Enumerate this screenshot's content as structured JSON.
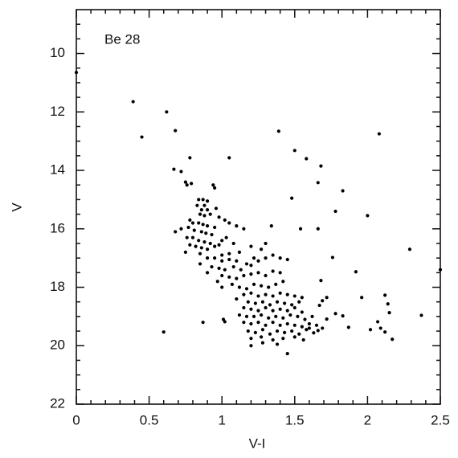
{
  "chart_data": {
    "type": "scatter",
    "annotation": "Be 28",
    "xlabel": "V-I",
    "ylabel": "V",
    "color": "#000000",
    "xlim": [
      0,
      2.5
    ],
    "ylim": [
      22,
      8.5
    ],
    "xticks": [
      0,
      0.5,
      1,
      1.5,
      2,
      2.5
    ],
    "yticks": [
      10,
      12,
      14,
      16,
      18,
      20,
      22
    ],
    "xminorticks": [
      0.1,
      0.2,
      0.3,
      0.4,
      0.6,
      0.7,
      0.8,
      0.9,
      1.1,
      1.2,
      1.3,
      1.4,
      1.6,
      1.7,
      1.8,
      1.9,
      2.1,
      2.2,
      2.3,
      2.4
    ],
    "yminorticks": [
      9,
      9.5,
      10.5,
      11,
      11.5,
      12.5,
      13,
      13.5,
      14.5,
      15,
      15.5,
      16.5,
      17,
      17.5,
      18.5,
      19,
      19.5,
      20.5,
      21,
      21.5
    ],
    "x": [
      0.0,
      0.39,
      0.45,
      0.62,
      0.68,
      0.78,
      0.67,
      0.72,
      0.75,
      0.76,
      0.79,
      0.94,
      0.95,
      1.05,
      1.39,
      1.5,
      1.58,
      1.68,
      1.66,
      1.83,
      2.08,
      1.48,
      1.78,
      2.0,
      0.68,
      1.54,
      1.66,
      1.34,
      2.29,
      1.92,
      1.76,
      1.68,
      2.5,
      1.96,
      2.12,
      2.14,
      2.15,
      2.37,
      2.07,
      2.09,
      2.12,
      2.17,
      2.02,
      1.87,
      1.83,
      1.78,
      1.72,
      1.69,
      1.67,
      1.72,
      1.69,
      1.63,
      1.6,
      1.66,
      1.45,
      1.2,
      0.6,
      0.87,
      1.01,
      1.02,
      0.84,
      0.87,
      0.9,
      0.83,
      0.88,
      0.86,
      0.9,
      0.85,
      0.88,
      0.92,
      0.78,
      0.8,
      0.84,
      0.87,
      0.9,
      0.95,
      0.77,
      0.81,
      0.86,
      0.89,
      0.93,
      0.76,
      0.8,
      0.84,
      0.88,
      0.92,
      0.78,
      0.82,
      0.86,
      0.9,
      0.95,
      0.98,
      1.0,
      1.03,
      0.75,
      0.85,
      0.96,
      0.98,
      1.02,
      1.05,
      1.08,
      1.05,
      0.9,
      0.95,
      1.0,
      1.05,
      1.1,
      0.93,
      0.98,
      1.02,
      1.08,
      1.13,
      1.17,
      1.2,
      1.22,
      1.25,
      1.3,
      1.35,
      1.4,
      1.45,
      1.27,
      1.0,
      1.05,
      1.1,
      1.15,
      1.2,
      1.25,
      1.3,
      1.35,
      1.4,
      1.42,
      1.07,
      1.12,
      1.17,
      1.22,
      1.27,
      1.32,
      1.37,
      1.15,
      1.2,
      1.25,
      1.3,
      1.35,
      1.4,
      1.45,
      1.5,
      1.55,
      1.18,
      1.23,
      1.28,
      1.33,
      1.38,
      1.43,
      1.48,
      1.53,
      1.15,
      1.2,
      1.25,
      1.3,
      1.35,
      1.4,
      1.45,
      1.5,
      1.55,
      1.12,
      1.17,
      1.22,
      1.27,
      1.32,
      1.37,
      1.42,
      1.47,
      1.52,
      1.57,
      1.62,
      1.15,
      1.2,
      1.25,
      1.3,
      1.35,
      1.4,
      1.45,
      1.5,
      1.55,
      1.6,
      1.65,
      1.18,
      1.23,
      1.28,
      1.33,
      1.38,
      1.43,
      1.48,
      1.53,
      1.58,
      1.2,
      1.27,
      1.35,
      1.42,
      1.5,
      1.56,
      1.28,
      1.38,
      0.72,
      0.85,
      0.9,
      0.97,
      1.0,
      1.1,
      1.15,
      1.1,
      1.12,
      1.2,
      1.3,
      1.0
    ],
    "values": [
      10.65,
      11.65,
      12.86,
      12.0,
      12.64,
      13.57,
      13.96,
      14.04,
      14.4,
      14.5,
      14.45,
      14.5,
      14.6,
      13.57,
      12.66,
      13.32,
      13.6,
      13.85,
      14.42,
      14.7,
      12.75,
      14.95,
      15.4,
      15.55,
      16.1,
      16.0,
      16.0,
      15.9,
      16.7,
      17.47,
      16.98,
      17.77,
      17.4,
      18.35,
      18.27,
      18.57,
      18.87,
      18.96,
      19.18,
      19.4,
      19.53,
      19.78,
      19.45,
      19.37,
      18.98,
      18.9,
      18.35,
      18.46,
      18.62,
      19.09,
      19.4,
      19.56,
      19.4,
      19.48,
      20.27,
      20.0,
      19.53,
      19.2,
      19.1,
      19.18,
      15.0,
      15.0,
      15.05,
      15.2,
      15.2,
      15.35,
      15.35,
      15.5,
      15.55,
      15.5,
      15.7,
      15.8,
      15.8,
      15.85,
      15.9,
      15.95,
      15.95,
      16.05,
      16.1,
      16.15,
      16.2,
      16.3,
      16.3,
      16.4,
      16.45,
      16.5,
      16.55,
      16.6,
      16.65,
      16.7,
      16.6,
      16.55,
      16.4,
      16.3,
      16.8,
      16.85,
      15.3,
      15.6,
      15.7,
      15.8,
      16.5,
      16.85,
      17.0,
      17.0,
      17.1,
      17.05,
      17.1,
      17.3,
      17.35,
      17.4,
      17.3,
      17.4,
      17.2,
      17.25,
      17.0,
      17.1,
      17.0,
      16.9,
      17.0,
      17.05,
      16.7,
      17.6,
      17.65,
      17.7,
      17.6,
      17.55,
      17.5,
      17.6,
      17.45,
      17.5,
      17.8,
      17.9,
      18.0,
      18.05,
      17.9,
      17.95,
      18.0,
      17.9,
      18.25,
      18.2,
      18.3,
      18.25,
      18.3,
      18.2,
      18.25,
      18.3,
      18.35,
      18.5,
      18.55,
      18.5,
      18.6,
      18.5,
      18.55,
      18.6,
      18.5,
      18.7,
      18.75,
      18.8,
      18.7,
      18.8,
      18.75,
      18.8,
      18.7,
      18.85,
      18.95,
      19.0,
      19.0,
      18.95,
      19.05,
      19.0,
      19.05,
      18.95,
      19.0,
      19.1,
      19.0,
      19.2,
      19.25,
      19.2,
      19.3,
      19.2,
      19.3,
      19.25,
      19.3,
      19.35,
      19.25,
      19.3,
      19.5,
      19.55,
      19.45,
      19.6,
      19.5,
      19.55,
      19.5,
      19.6,
      19.45,
      19.75,
      19.7,
      19.8,
      19.75,
      19.7,
      19.8,
      19.9,
      19.95,
      16.0,
      17.2,
      17.5,
      17.8,
      18.0,
      18.4,
      16.0,
      15.9,
      16.8,
      16.6,
      16.5,
      16.9
    ]
  }
}
